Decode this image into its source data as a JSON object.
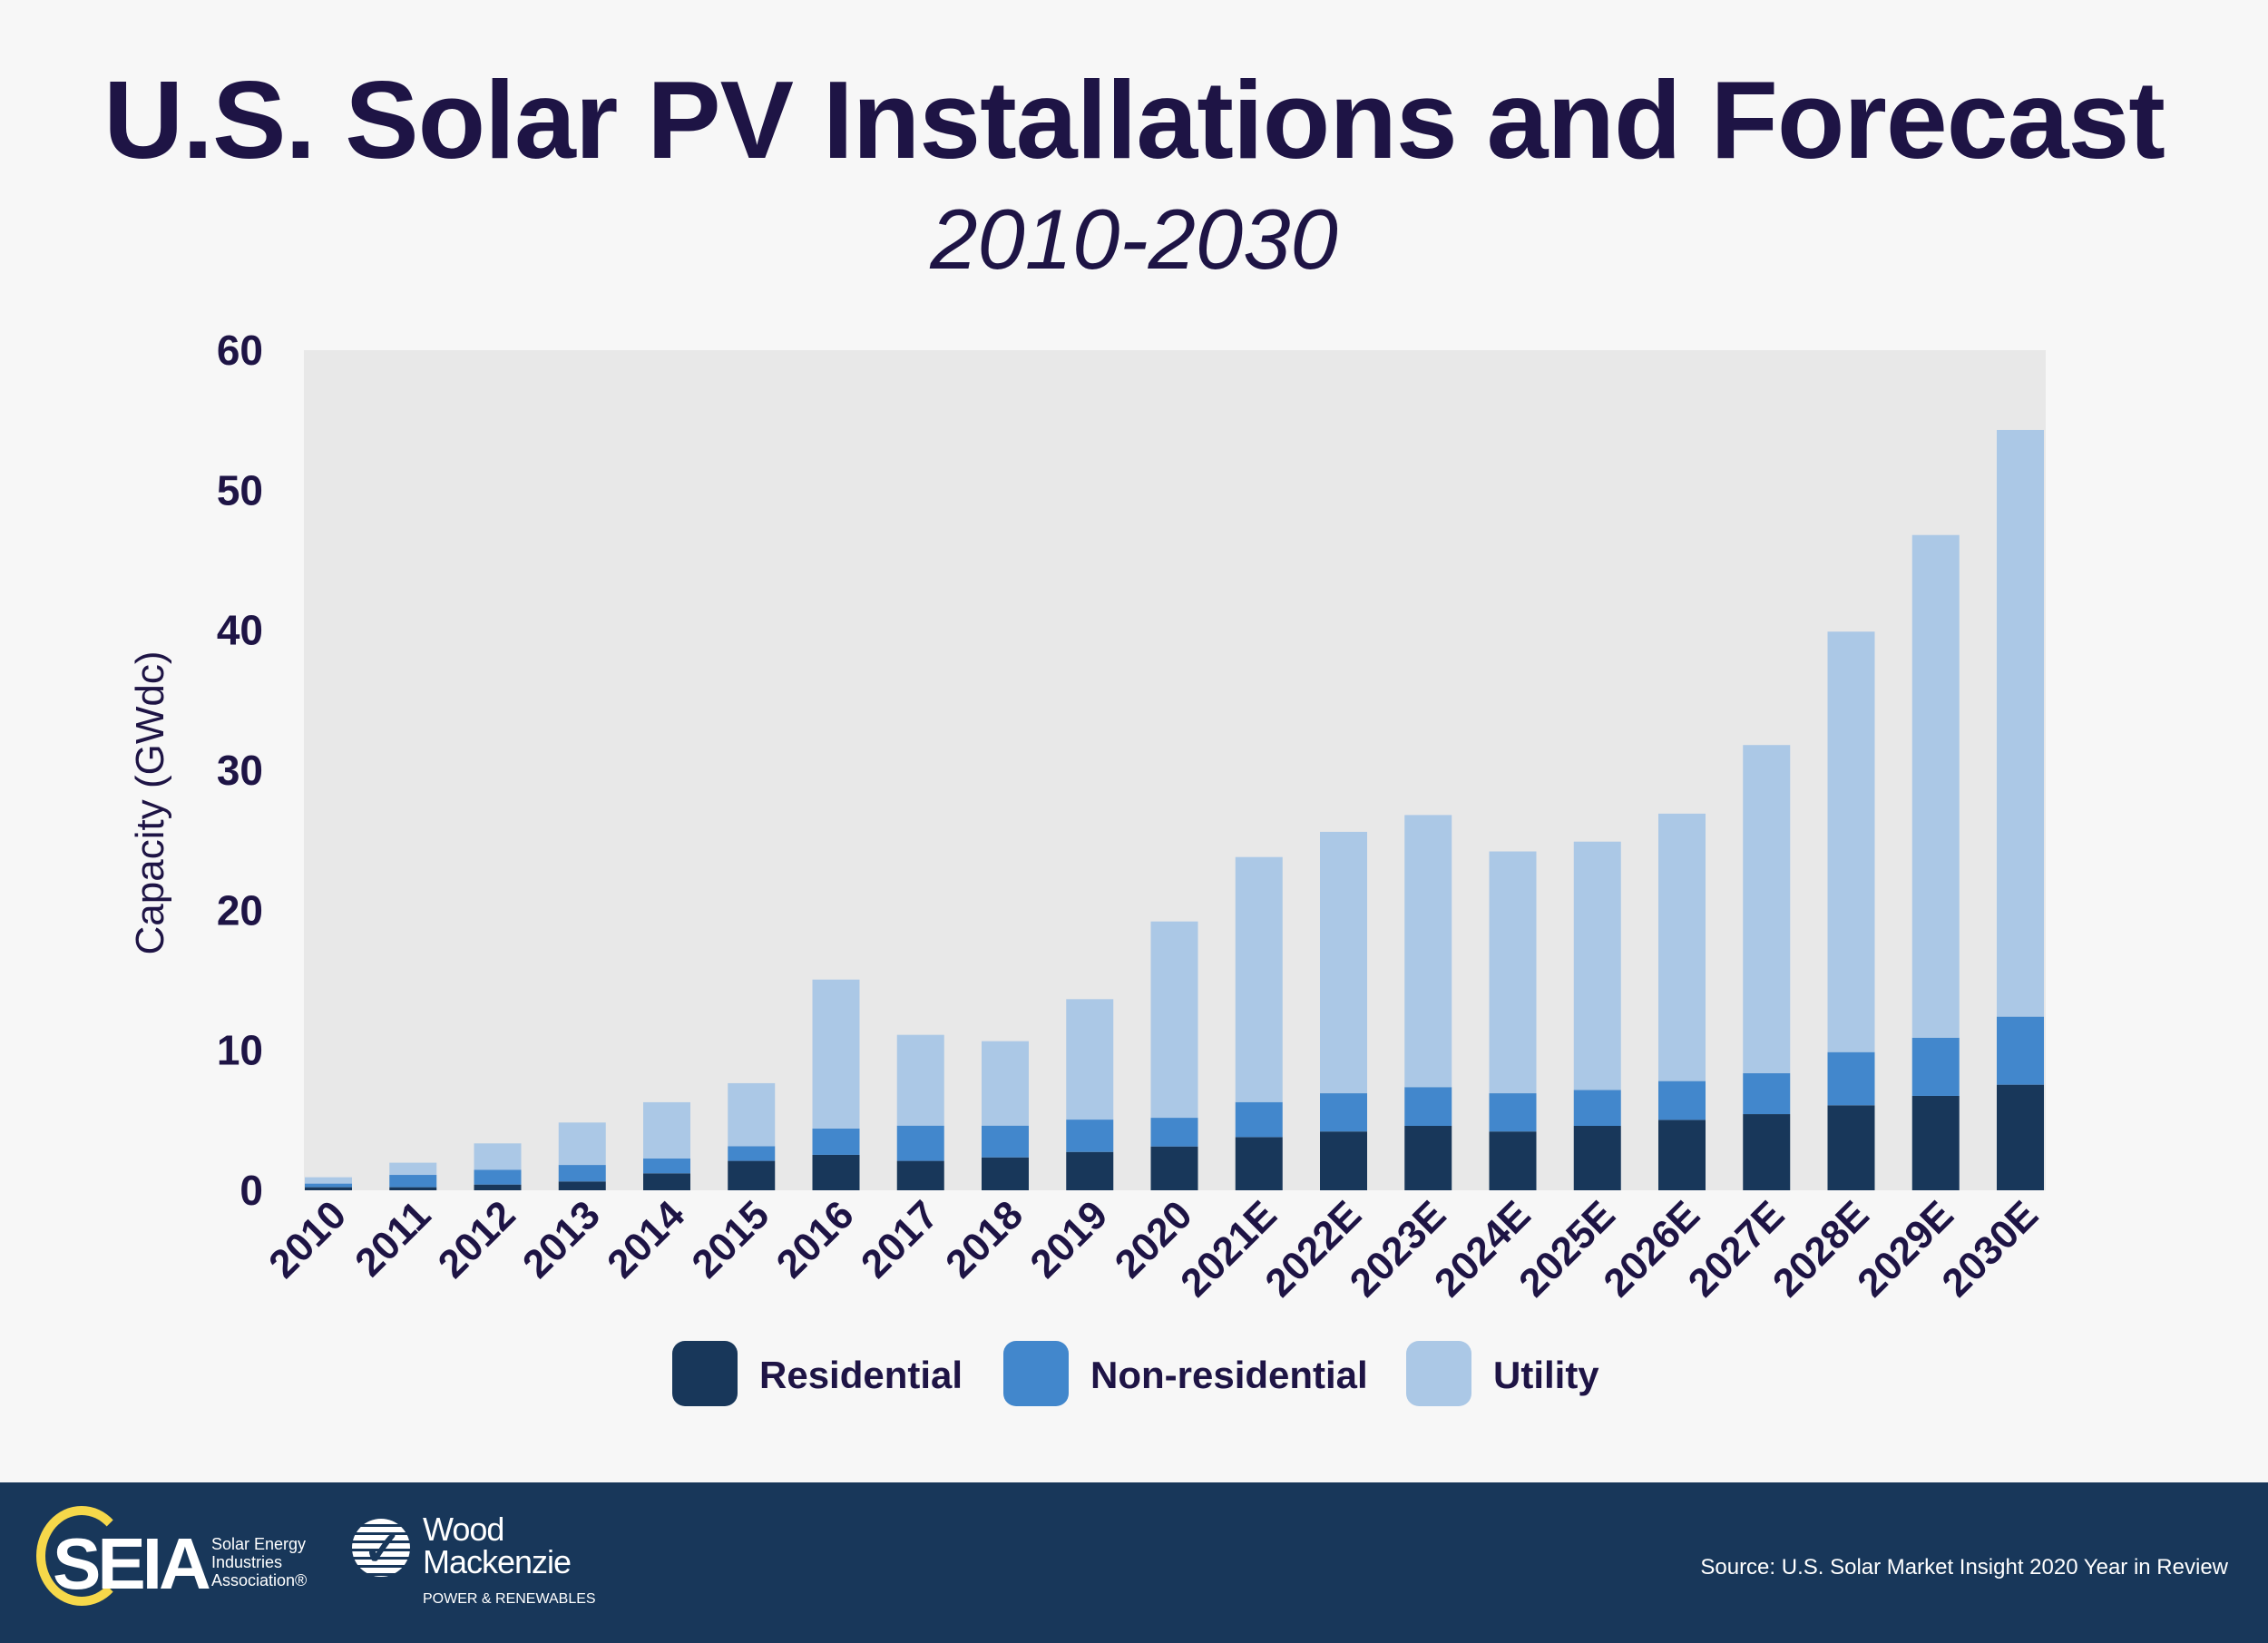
{
  "header": {
    "title": "U.S. Solar PV Installations and Forecast",
    "subtitle": "2010-2030"
  },
  "chart_data": {
    "type": "bar",
    "stacked": true,
    "title": "U.S. Solar PV Installations and Forecast",
    "subtitle": "2010-2030",
    "xlabel": "",
    "ylabel": "Capacity (GWdc)",
    "ylim": [
      0,
      60
    ],
    "yticks": [
      "0",
      "10",
      "20",
      "30",
      "40",
      "50",
      "60"
    ],
    "grid": false,
    "legend_position": "bottom",
    "categories": [
      "2010",
      "2011",
      "2012",
      "2013",
      "2014",
      "2015",
      "2016",
      "2017",
      "2018",
      "2019",
      "2020",
      "2021E",
      "2022E",
      "2023E",
      "2024E",
      "2025E",
      "2026E",
      "2027E",
      "2028E",
      "2029E",
      "2030E"
    ],
    "series": [
      {
        "name": "Residential",
        "color": "#18375a",
        "values": [
          0.22,
          0.22,
          0.41,
          0.63,
          1.21,
          2.1,
          2.53,
          2.1,
          2.35,
          2.74,
          3.13,
          3.8,
          4.2,
          4.6,
          4.2,
          4.6,
          5.03,
          5.44,
          6.07,
          6.74,
          7.54
        ]
      },
      {
        "name": "Non-residential",
        "color": "#4287cc",
        "values": [
          0.26,
          0.88,
          1.06,
          1.18,
          1.06,
          1.05,
          1.88,
          2.52,
          2.27,
          2.31,
          2.05,
          2.5,
          2.73,
          2.77,
          2.73,
          2.57,
          2.77,
          2.92,
          3.8,
          4.16,
          4.86
        ]
      },
      {
        "name": "Utility",
        "color": "#abc8e6",
        "values": [
          0.45,
          0.87,
          1.88,
          3.03,
          4.02,
          4.5,
          10.64,
          6.48,
          6.03,
          8.6,
          14.02,
          17.5,
          18.67,
          19.43,
          17.27,
          17.73,
          19.1,
          23.44,
          30.03,
          35.9,
          41.9
        ]
      }
    ],
    "colors": {
      "plot_background": "#e8e8e8",
      "text": "#1e1445"
    }
  },
  "footer": {
    "source": "Source: U.S. Solar Market Insight 2020 Year in Review",
    "seia_logo": {
      "wordmark": "SEIA",
      "line1": "Solar Energy",
      "line2": "Industries",
      "line3": "Association®"
    },
    "wm_logo": {
      "line1": "Wood",
      "line2": "Mackenzie",
      "tagline": "POWER & RENEWABLES"
    }
  }
}
